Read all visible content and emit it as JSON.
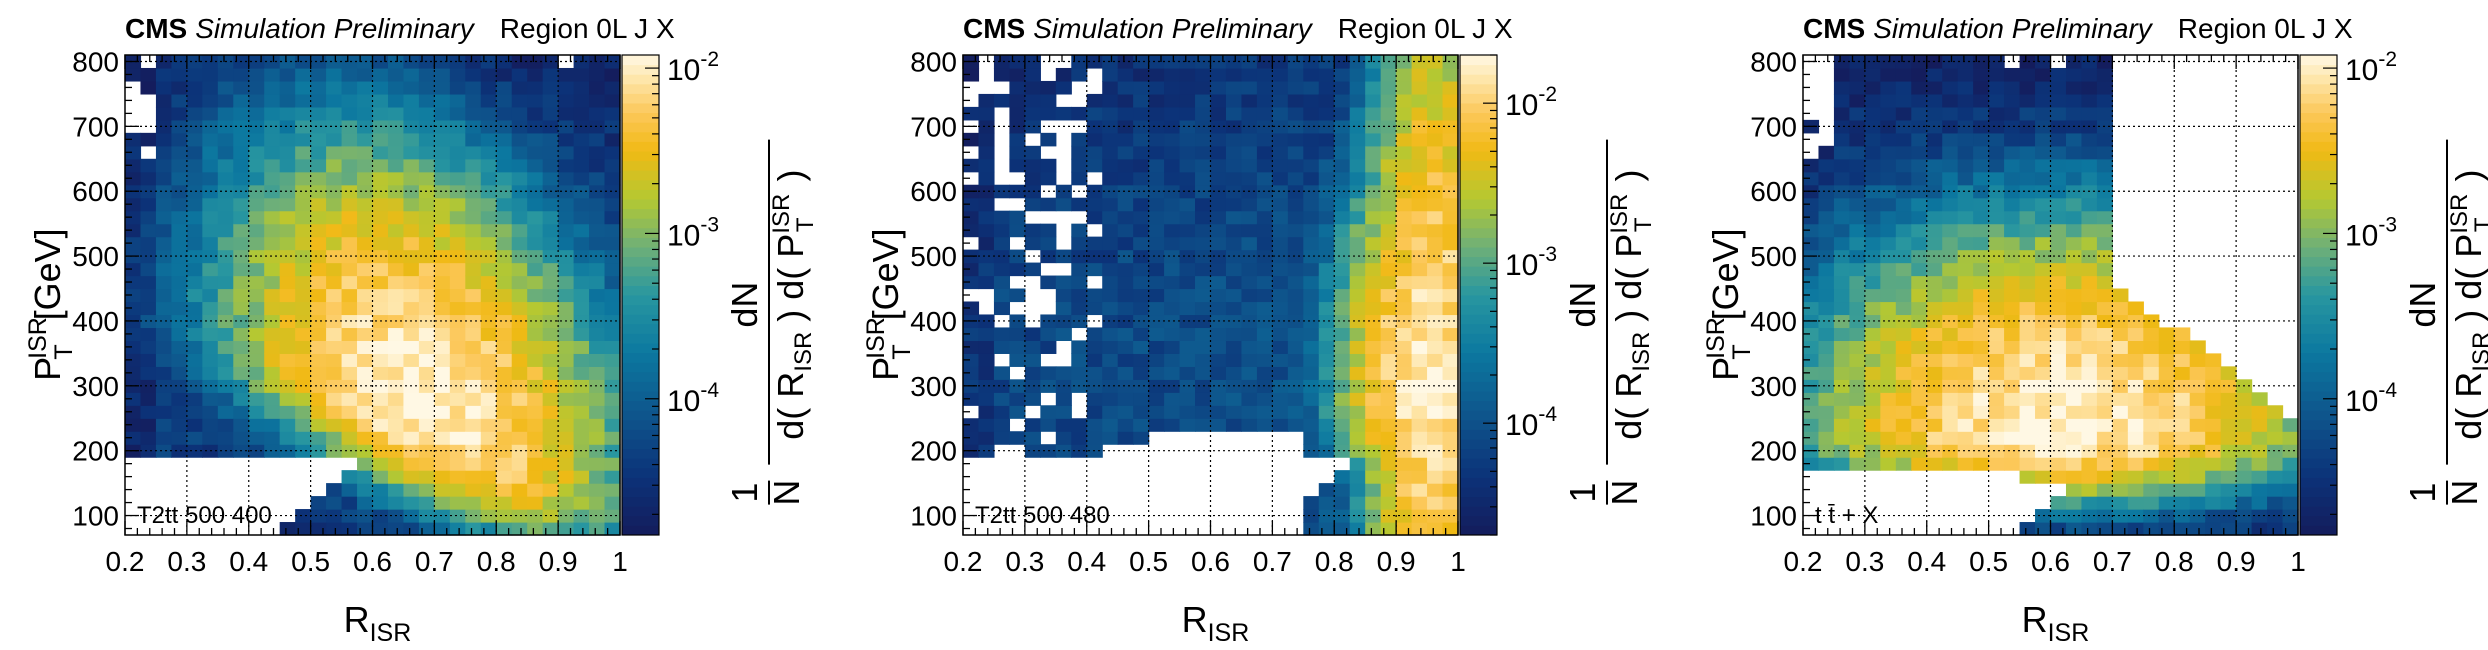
{
  "chart_data": [
    {
      "type": "heatmap",
      "header": {
        "experiment": "CMS",
        "status": "Simulation Preliminary",
        "region": "Region 0L J X"
      },
      "sample_label": "T2tt 500 400",
      "xlabel": "R_ISR",
      "ylabel": "P_T^ISR [GeV]",
      "zlabel": "1/N dN/(d(R_ISR) d(P_T^ISR))",
      "xlim": [
        0.2,
        1.0
      ],
      "ylim": [
        70,
        810
      ],
      "x_ticks": [
        "0.2",
        "0.3",
        "0.4",
        "0.5",
        "0.6",
        "0.7",
        "0.8",
        "0.9",
        "1"
      ],
      "y_ticks": [
        "100",
        "200",
        "300",
        "400",
        "500",
        "600",
        "700",
        "800"
      ],
      "z_scale": "log",
      "z_range": [
        1.5e-05,
        0.012
      ],
      "z_tick_labels": [
        {
          "base": "10",
          "exp": "-2",
          "value": 0.01
        },
        {
          "base": "10",
          "exp": "-3",
          "value": 0.001
        },
        {
          "base": "10",
          "exp": "-4",
          "value": 0.0001
        }
      ],
      "grid": true,
      "peak": {
        "x": 0.68,
        "y": 260,
        "z": 0.011
      },
      "spread": {
        "sx": 0.13,
        "sy_low": 55,
        "sy_high": 160,
        "tilt": 40
      },
      "corr_ridge": {
        "strength": 0.0,
        "x0": 0.95,
        "y0": 300
      },
      "hole": {
        "x_below": 0.45,
        "y_below": 200
      },
      "max_pt_at_low_r": 810,
      "seed": 11
    },
    {
      "type": "heatmap",
      "header": {
        "experiment": "CMS",
        "status": "Simulation Preliminary",
        "region": "Region 0L J X"
      },
      "sample_label": "T2tt 500 480",
      "xlabel": "R_ISR",
      "ylabel": "P_T^ISR [GeV]",
      "zlabel": "1/N dN/(d(R_ISR) d(P_T^ISR))",
      "xlim": [
        0.2,
        1.0
      ],
      "ylim": [
        70,
        810
      ],
      "x_ticks": [
        "0.2",
        "0.3",
        "0.4",
        "0.5",
        "0.6",
        "0.7",
        "0.8",
        "0.9",
        "1"
      ],
      "y_ticks": [
        "100",
        "200",
        "300",
        "400",
        "500",
        "600",
        "700",
        "800"
      ],
      "z_scale": "log",
      "z_range": [
        2e-05,
        0.02
      ],
      "z_tick_labels": [
        {
          "base": "10",
          "exp": "-2",
          "value": 0.01
        },
        {
          "base": "10",
          "exp": "-3",
          "value": 0.001
        },
        {
          "base": "10",
          "exp": "-4",
          "value": 0.0001
        }
      ],
      "grid": true,
      "peak": {
        "x": 0.95,
        "y": 280,
        "z": 0.018
      },
      "spread": {
        "sx": 0.06,
        "sy_low": 60,
        "sy_high": 170,
        "tilt": 0
      },
      "corr_ridge": {
        "strength": 1.0,
        "x0": 0.96,
        "y0": 330
      },
      "hole": {
        "x_below": 0.7,
        "y_below": 190
      },
      "max_pt_at_low_r": 800,
      "seed": 23
    },
    {
      "type": "heatmap",
      "header": {
        "experiment": "CMS",
        "status": "Simulation Preliminary",
        "region": "Region 0L J X"
      },
      "sample_label": "t t̄ + X",
      "xlabel": "R_ISR",
      "ylabel": "P_T^ISR [GeV]",
      "zlabel": "1/N dN/(d(R_ISR) d(P_T^ISR))",
      "xlim": [
        0.2,
        1.0
      ],
      "ylim": [
        70,
        810
      ],
      "x_ticks": [
        "0.2",
        "0.3",
        "0.4",
        "0.5",
        "0.6",
        "0.7",
        "0.8",
        "0.9",
        "1"
      ],
      "y_ticks": [
        "100",
        "200",
        "300",
        "400",
        "500",
        "600",
        "700",
        "800"
      ],
      "z_scale": "log",
      "z_range": [
        1.5e-05,
        0.012
      ],
      "z_tick_labels": [
        {
          "base": "10",
          "exp": "-2",
          "value": 0.01
        },
        {
          "base": "10",
          "exp": "-3",
          "value": 0.001
        },
        {
          "base": "10",
          "exp": "-4",
          "value": 0.0001
        }
      ],
      "grid": true,
      "peak": {
        "x": 0.62,
        "y": 235,
        "z": 0.011
      },
      "spread": {
        "sx": 0.17,
        "sy_low": 45,
        "sy_high": 130,
        "tilt": 0
      },
      "corr_ridge": {
        "strength": 0.0,
        "x0": 0.9,
        "y0": 250
      },
      "hole": {
        "x_below": 0.55,
        "y_below": 150
      },
      "max_pt_at_low_r": 810,
      "seed": 37
    }
  ]
}
